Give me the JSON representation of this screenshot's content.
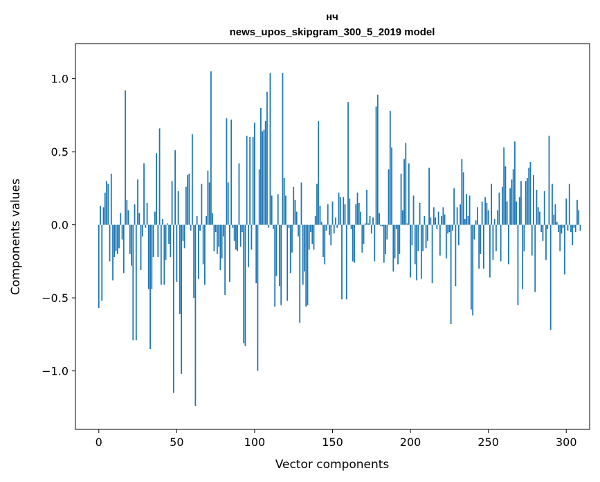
{
  "chart_data": {
    "type": "bar",
    "title_line1": "нч",
    "title_line2": "news_upos_skipgram_300_5_2019 model",
    "xlabel": "Vector components",
    "ylabel": "Components values",
    "xlim": [
      -15,
      315
    ],
    "ylim": [
      -1.4,
      1.24
    ],
    "x_ticks": [
      0,
      50,
      100,
      150,
      200,
      250,
      300
    ],
    "x_tick_labels": [
      "0",
      "50",
      "100",
      "150",
      "200",
      "250",
      "300"
    ],
    "y_ticks": [
      -1.0,
      -0.5,
      0.0,
      0.5,
      1.0
    ],
    "y_tick_labels": [
      "−1.0",
      "−0.5",
      "0.0",
      "0.5",
      "1.0"
    ],
    "bar_color": "#1f77b4",
    "values": [
      -0.57,
      0.13,
      -0.52,
      0.12,
      0.22,
      0.3,
      0.28,
      -0.25,
      0.35,
      -0.38,
      -0.22,
      -0.18,
      -0.2,
      -0.16,
      0.08,
      -0.1,
      -0.33,
      0.92,
      0.17,
      0.1,
      -0.2,
      -0.28,
      -0.79,
      0.14,
      -0.79,
      0.31,
      0.08,
      -0.31,
      -0.08,
      0.42,
      -0.02,
      0.15,
      -0.44,
      -0.85,
      -0.44,
      -0.22,
      0.09,
      0.49,
      -0.22,
      0.66,
      -0.41,
      0.04,
      -0.41,
      -0.24,
      0.01,
      -0.13,
      -0.22,
      0.3,
      -1.15,
      0.51,
      -0.39,
      0.23,
      -0.61,
      -1.02,
      -0.11,
      -0.16,
      0.26,
      0.34,
      0.35,
      -0.04,
      0.62,
      -0.5,
      -1.24,
      0.06,
      -0.37,
      -0.04,
      0.28,
      -0.27,
      -0.41,
      0.06,
      0.37,
      0.29,
      1.05,
      0.08,
      -0.18,
      -0.05,
      -0.2,
      -0.15,
      -0.31,
      -0.23,
      -0.08,
      -0.48,
      0.73,
      0.29,
      -0.39,
      0.72,
      -0.02,
      -0.11,
      -0.17,
      -0.18,
      0.42,
      -0.15,
      -0.05,
      -0.81,
      -0.83,
      0.61,
      -0.29,
      0.6,
      -0.17,
      0.6,
      0.7,
      -0.4,
      -1.0,
      0.38,
      0.8,
      0.64,
      0.65,
      0.71,
      0.91,
      -0.02,
      1.04,
      0.2,
      -0.03,
      -0.56,
      -0.35,
      0.21,
      -0.42,
      -0.55,
      1.04,
      0.32,
      0.2,
      -0.52,
      -0.02,
      -0.33,
      -0.19,
      0.26,
      0.17,
      0.09,
      -0.08,
      -0.67,
      0.29,
      -0.41,
      -0.32,
      -0.56,
      -0.55,
      -0.17,
      -0.05,
      -0.13,
      -0.17,
      0.06,
      0.28,
      0.71,
      0.13,
      0.02,
      -0.22,
      -0.27,
      -0.04,
      0.14,
      -0.07,
      -0.14,
      0.16,
      -0.06,
      0.05,
      -0.02,
      0.22,
      0.19,
      -0.51,
      0.19,
      0.14,
      -0.51,
      0.84,
      0.18,
      -0.03,
      -0.25,
      -0.26,
      0.14,
      0.22,
      0.15,
      0.09,
      -0.19,
      -0.13,
      0.01,
      0.24,
      0.01,
      0.06,
      -0.06,
      0.05,
      -0.25,
      0.81,
      0.89,
      0.08,
      -0.01,
      -0.01,
      -0.26,
      -0.2,
      -0.1,
      0.38,
      0.78,
      0.53,
      -0.32,
      -0.23,
      -0.03,
      -0.27,
      -0.2,
      0.35,
      0.1,
      0.45,
      0.56,
      0.01,
      0.42,
      -0.36,
      -0.14,
      0.2,
      -0.27,
      -0.38,
      -0.18,
      0.15,
      -0.37,
      -0.18,
      0.06,
      -0.16,
      -0.11,
      0.39,
      0.05,
      -0.4,
      0.12,
      0.05,
      -0.03,
      0.09,
      -0.21,
      0.06,
      0.12,
      0.07,
      -0.23,
      -0.06,
      -0.05,
      -0.68,
      -0.04,
      0.25,
      -0.42,
      0.12,
      -0.14,
      0.14,
      0.45,
      0.36,
      0.04,
      0.21,
      0.06,
      0.2,
      -0.58,
      -0.62,
      -0.1,
      0.03,
      0.12,
      -0.3,
      -0.2,
      0.16,
      -0.3,
      0.19,
      0.15,
      0.1,
      -0.36,
      0.28,
      -0.24,
      0.04,
      -0.18,
      0.1,
      0.22,
      -0.25,
      0.26,
      0.53,
      0.4,
      0.16,
      -0.27,
      0.25,
      0.31,
      0.38,
      0.57,
      0.16,
      -0.55,
      0.19,
      0.3,
      -0.44,
      -0.18,
      0.3,
      0.32,
      0.39,
      0.43,
      -0.21,
      0.34,
      -0.46,
      0.24,
      0.12,
      0.09,
      -0.05,
      -0.11,
      0.23,
      -0.24,
      -0.03,
      0.61,
      -0.72,
      0.28,
      0.07,
      0.14,
      0.02,
      -0.05,
      -0.18,
      -0.06,
      -0.02,
      -0.34,
      0.18,
      -0.04,
      0.28,
      -0.05,
      -0.14,
      -0.02,
      -0.05,
      0.17,
      0.1,
      -0.04
    ]
  }
}
